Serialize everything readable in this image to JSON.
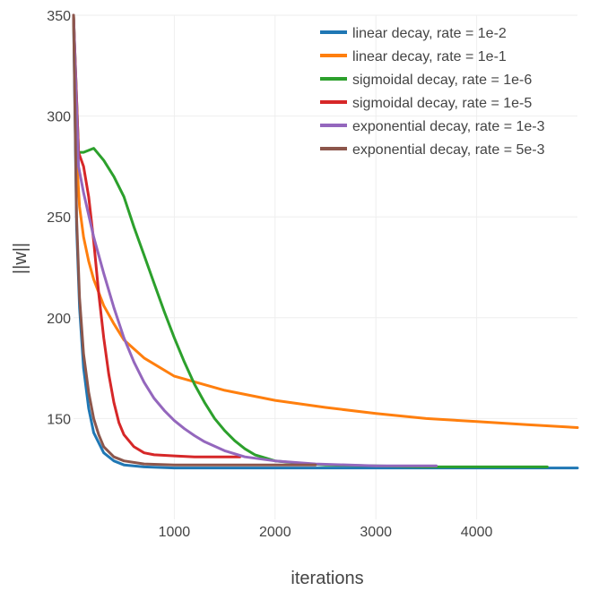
{
  "chart_data": {
    "type": "line",
    "xlabel": "iterations",
    "ylabel": "||w||",
    "xlim": [
      0,
      5000
    ],
    "ylim": [
      100,
      350
    ],
    "xticks": [
      1000,
      2000,
      3000,
      4000
    ],
    "yticks": [
      150,
      200,
      250,
      300,
      350
    ],
    "grid": true,
    "legend_position": "top-right",
    "series": [
      {
        "name": "linear decay, rate = 1e-2",
        "color": "#1f77b4",
        "x": [
          0,
          30,
          60,
          100,
          150,
          200,
          300,
          400,
          500,
          700,
          1000,
          1500,
          2000,
          3000,
          4000,
          5000
        ],
        "y": [
          350,
          245,
          205,
          175,
          155,
          143,
          133,
          129,
          127,
          126,
          125.5,
          125.5,
          125.5,
          125.5,
          125.5,
          125.5
        ]
      },
      {
        "name": "linear decay, rate = 1e-1",
        "color": "#ff7f0e",
        "x": [
          0,
          30,
          60,
          100,
          150,
          200,
          300,
          400,
          500,
          700,
          1000,
          1500,
          2000,
          2500,
          3000,
          3500,
          4000,
          4500,
          5000
        ],
        "y": [
          350,
          280,
          255,
          240,
          228,
          219,
          206,
          197,
          189,
          180,
          171,
          164,
          159,
          155.5,
          152.5,
          150,
          148.5,
          147,
          145.5
        ]
      },
      {
        "name": "sigmoidal decay, rate = 1e-6",
        "color": "#2ca02c",
        "x": [
          0,
          50,
          100,
          200,
          300,
          400,
          500,
          600,
          700,
          800,
          900,
          1000,
          1100,
          1200,
          1300,
          1400,
          1500,
          1600,
          1700,
          1800,
          2000,
          2200,
          2500,
          3000,
          3500,
          4000,
          4500,
          4700
        ],
        "y": [
          350,
          282,
          282,
          284,
          278,
          270,
          260,
          245,
          231,
          217,
          203,
          190,
          178,
          167,
          158,
          150,
          144,
          139,
          135,
          132,
          129,
          128,
          127,
          126.5,
          126,
          126,
          126,
          126
        ]
      },
      {
        "name": "sigmoidal decay, rate = 1e-5",
        "color": "#d62728",
        "x": [
          0,
          50,
          100,
          150,
          200,
          250,
          300,
          350,
          400,
          450,
          500,
          600,
          700,
          800,
          1000,
          1200,
          1400,
          1650
        ],
        "y": [
          350,
          282,
          275,
          260,
          238,
          212,
          190,
          172,
          158,
          148,
          142,
          136,
          133,
          132,
          131.5,
          131,
          131,
          131
        ]
      },
      {
        "name": "exponential decay, rate = 1e-3",
        "color": "#9467bd",
        "x": [
          0,
          50,
          100,
          200,
          300,
          400,
          500,
          600,
          700,
          800,
          900,
          1000,
          1100,
          1200,
          1300,
          1500,
          1700,
          2000,
          2400,
          3000,
          3600
        ],
        "y": [
          350,
          275,
          262,
          240,
          222,
          205,
          190,
          178,
          168,
          160,
          154,
          149,
          145,
          141.5,
          138.5,
          134,
          131,
          129,
          127.5,
          126.5,
          126.5
        ]
      },
      {
        "name": "exponential decay, rate = 5e-3",
        "color": "#8c564b",
        "x": [
          0,
          30,
          60,
          100,
          150,
          200,
          250,
          300,
          400,
          500,
          700,
          1000,
          1500,
          2000,
          2400
        ],
        "y": [
          350,
          250,
          210,
          182,
          163,
          150,
          142,
          136,
          131,
          129,
          127.5,
          127,
          127,
          127,
          127
        ]
      }
    ]
  }
}
